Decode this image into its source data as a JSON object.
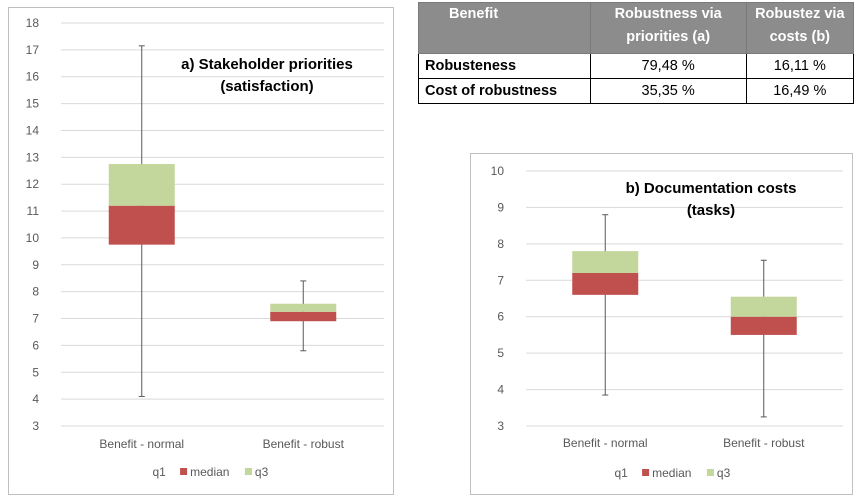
{
  "table": {
    "headers": [
      "Benefit",
      "Robustness via priorities (a)",
      "Robustez via costs (b)"
    ],
    "rows": [
      {
        "label": "Robusteness",
        "a": "79,48 %",
        "b": "16,11 %"
      },
      {
        "label": "Cost of robustness",
        "a": "35,35 %",
        "b": "16,49 %"
      }
    ]
  },
  "colors": {
    "q1": "#ffffff",
    "median": "#c0504d",
    "q3": "#c3d69b",
    "whisker": "#595959",
    "grid": "#d9d9d9"
  },
  "chart_data": [
    {
      "type": "box",
      "title": "a) Stakeholder priorities (satisfaction)",
      "title_lines": [
        "a) Stakeholder priorities",
        "(satisfaction)"
      ],
      "categories": [
        "Benefit - normal",
        "Benefit - robust"
      ],
      "ylim": [
        3,
        18
      ],
      "ticks": [
        3,
        4,
        5,
        6,
        7,
        8,
        9,
        10,
        11,
        12,
        13,
        14,
        15,
        16,
        17,
        18
      ],
      "grid": true,
      "legend": [
        "q1",
        "median",
        "q3"
      ],
      "legend_position": "bottom",
      "boxes": [
        {
          "category": "Benefit - normal",
          "min": 4.1,
          "q1": 9.75,
          "median": 11.2,
          "q3": 12.75,
          "max": 17.15
        },
        {
          "category": "Benefit - robust",
          "min": 5.8,
          "q1": 6.9,
          "median": 7.25,
          "q3": 7.55,
          "max": 8.4
        }
      ]
    },
    {
      "type": "box",
      "title": "b) Documentation costs (tasks)",
      "title_lines": [
        "b) Documentation costs",
        "(tasks)"
      ],
      "categories": [
        "Benefit - normal",
        "Benefit - robust"
      ],
      "ylim": [
        3,
        10
      ],
      "ticks": [
        3,
        4,
        5,
        6,
        7,
        8,
        9,
        10
      ],
      "grid": true,
      "legend": [
        "q1",
        "median",
        "q3"
      ],
      "legend_position": "bottom",
      "boxes": [
        {
          "category": "Benefit - normal",
          "min": 3.85,
          "q1": 6.6,
          "median": 7.2,
          "q3": 7.8,
          "max": 8.8
        },
        {
          "category": "Benefit - robust",
          "min": 3.25,
          "q1": 5.5,
          "median": 6.0,
          "q3": 6.55,
          "max": 7.55
        }
      ]
    }
  ]
}
